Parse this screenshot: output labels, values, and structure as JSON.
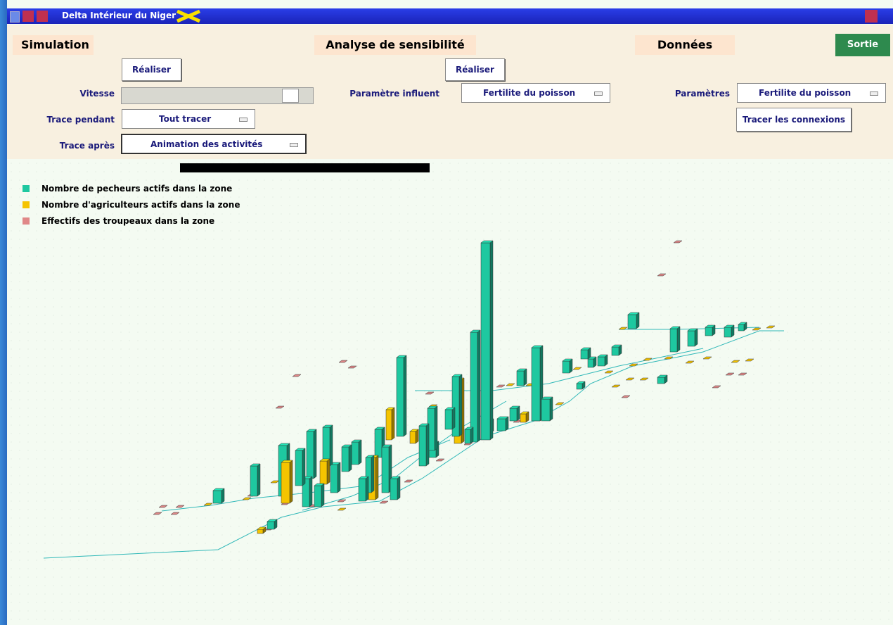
{
  "window": {
    "title": "Delta Intérieur du Niger"
  },
  "simulation": {
    "title": "Simulation",
    "run": "Réaliser",
    "speed_label": "Vitesse",
    "trace_during_label": "Trace pendant",
    "trace_during_value": "Tout tracer",
    "trace_after_label": "Trace après",
    "trace_after_value": "Animation des activités"
  },
  "sensitivity": {
    "title": "Analyse de sensibilité",
    "run": "Réaliser",
    "param_label": "Paramètre influent",
    "param_value": "Fertilite du poisson"
  },
  "data": {
    "title": "Données",
    "param_label": "Paramètres",
    "param_value": "Fertilite du poisson",
    "connections": "Tracer les connexions"
  },
  "exit": "Sortie",
  "legend": [
    {
      "label": "Nombre de pecheurs actifs dans la zone",
      "color": "#1ec8a0"
    },
    {
      "label": "Nombre d'agriculteurs actifs dans la zone",
      "color": "#f5c400"
    },
    {
      "label": "Effectifs des troupeaux dans la zone",
      "color": "#e08888"
    }
  ]
}
